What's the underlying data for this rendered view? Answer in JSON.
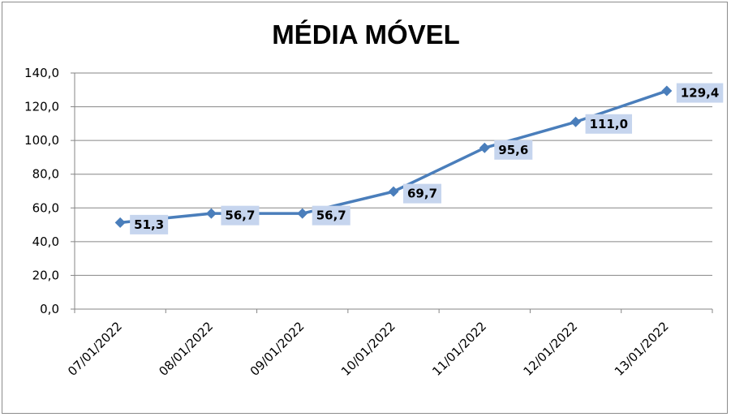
{
  "chart_data": {
    "type": "line",
    "title": "MÉDIA MÓVEL",
    "categories": [
      "07/01/2022",
      "08/01/2022",
      "09/01/2022",
      "10/01/2022",
      "11/01/2022",
      "12/01/2022",
      "13/01/2022"
    ],
    "series": [
      {
        "values": [
          51.3,
          56.7,
          56.7,
          69.7,
          95.6,
          111.0,
          129.4
        ],
        "labels": [
          "51,3",
          "56,7",
          "56,7",
          "69,7",
          "95,6",
          "111,0",
          "129,4"
        ],
        "color": "#4a7ebb",
        "marker": "diamond"
      }
    ],
    "ylim": [
      0,
      140
    ],
    "yticks": [
      "0,0",
      "20,0",
      "40,0",
      "60,0",
      "80,0",
      "100,0",
      "120,0",
      "140,0"
    ],
    "grid": true,
    "legend": "none",
    "colors": {
      "line": "#4a7ebb",
      "label_fill": "#c6d5ee",
      "grid": "#868686"
    }
  }
}
